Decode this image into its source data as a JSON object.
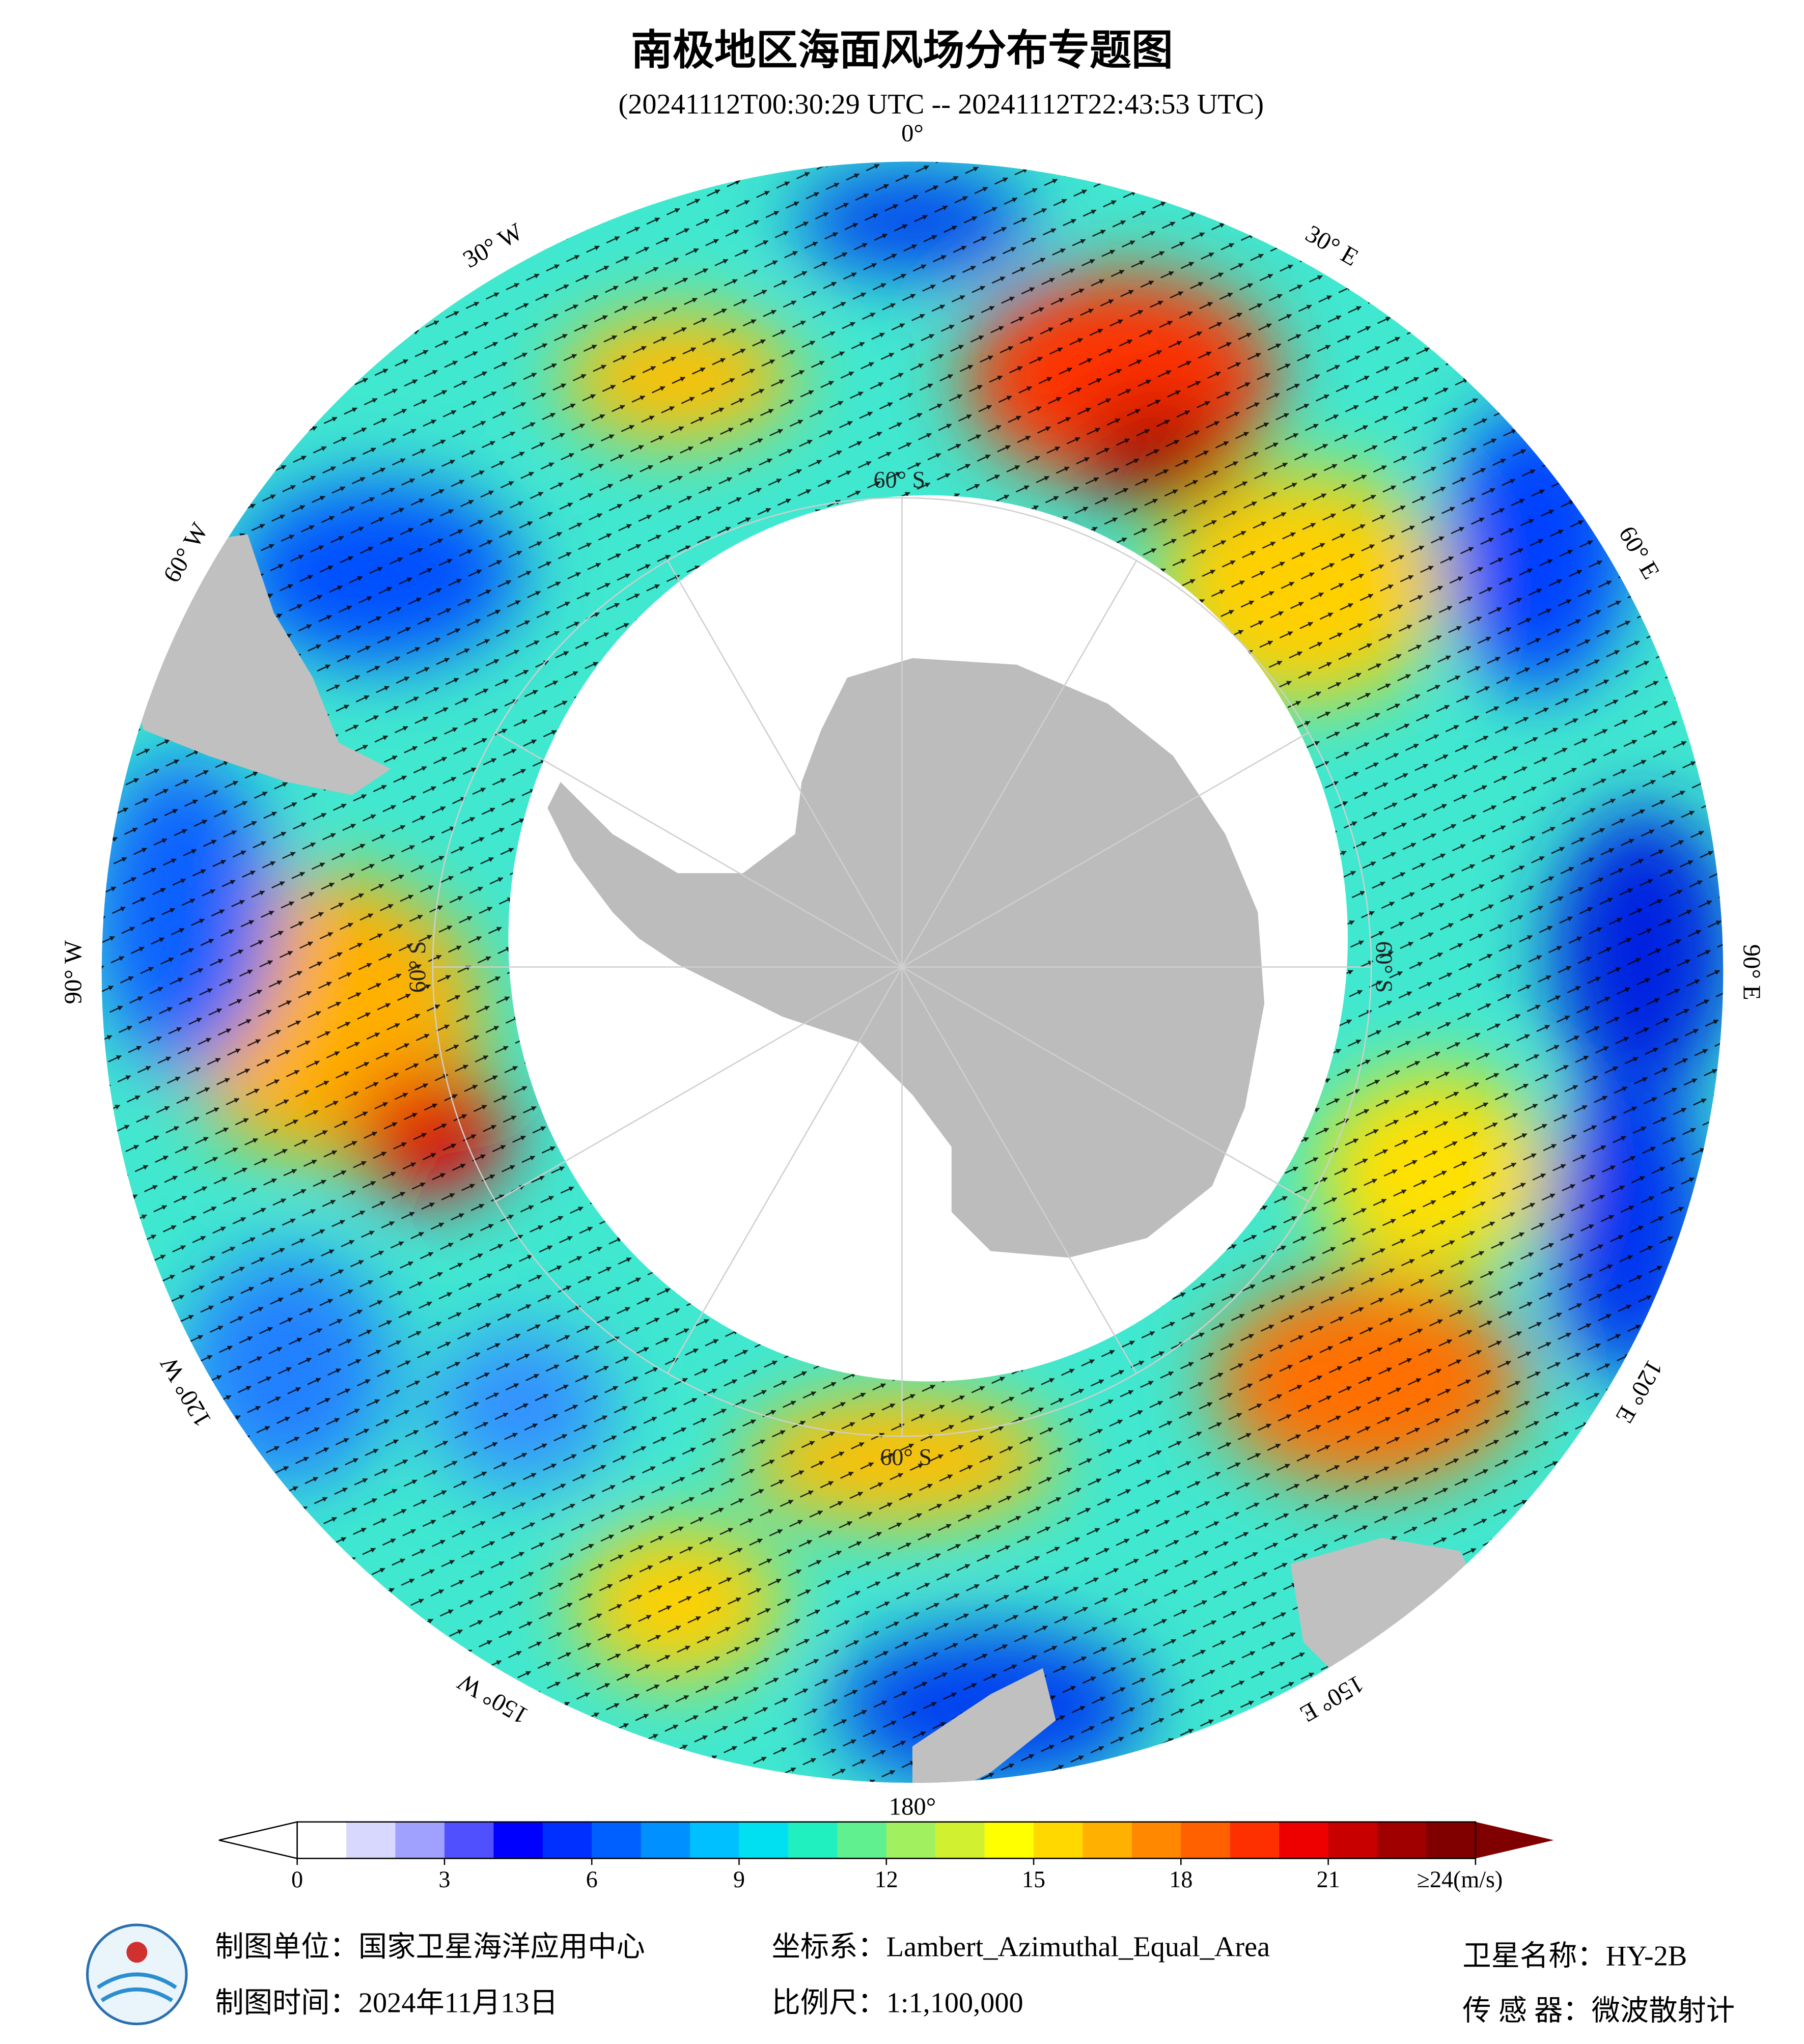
{
  "header": {
    "title": "南极地区海面风场分布专题图",
    "subtitle": "(20241112T00:30:29 UTC -- 20241112T22:43:53 UTC)"
  },
  "map": {
    "lon_labels": [
      "0°",
      "30° E",
      "60° E",
      "90° E",
      "120° E",
      "150° E",
      "180°",
      "150° W",
      "120° W",
      "90° W",
      "60° W",
      "30° W"
    ],
    "lat_labels": [
      "60° S",
      "60° S",
      "60° S",
      "60° S"
    ]
  },
  "colorbar": {
    "range": [
      0,
      24
    ],
    "ticks": [
      0,
      3,
      6,
      9,
      12,
      15,
      18,
      21,
      {
        "value": 24,
        "label": "≥24(m/s)"
      }
    ],
    "colors": [
      "#ffffff",
      "#d8d8ff",
      "#a0a0ff",
      "#5050ff",
      "#0000ff",
      "#0030ff",
      "#0060ff",
      "#0090ff",
      "#00c0ff",
      "#00e0f0",
      "#20f0c0",
      "#60f090",
      "#a0f060",
      "#d0f030",
      "#ffff00",
      "#ffd800",
      "#ffb000",
      "#ff8800",
      "#ff6000",
      "#ff3000",
      "#ee0000",
      "#c80000",
      "#a00000",
      "#800000"
    ]
  },
  "footer": {
    "unit": "制图单位：国家卫星海洋应用中心",
    "crs": "坐标系：Lambert_Azimuthal_Equal_Area",
    "satellite": "卫星名称：HY-2B",
    "date": "制图时间：2024年11月13日",
    "scale": "比例尺：1:1,100,000",
    "sensor": "传 感 器：微波散射计"
  }
}
